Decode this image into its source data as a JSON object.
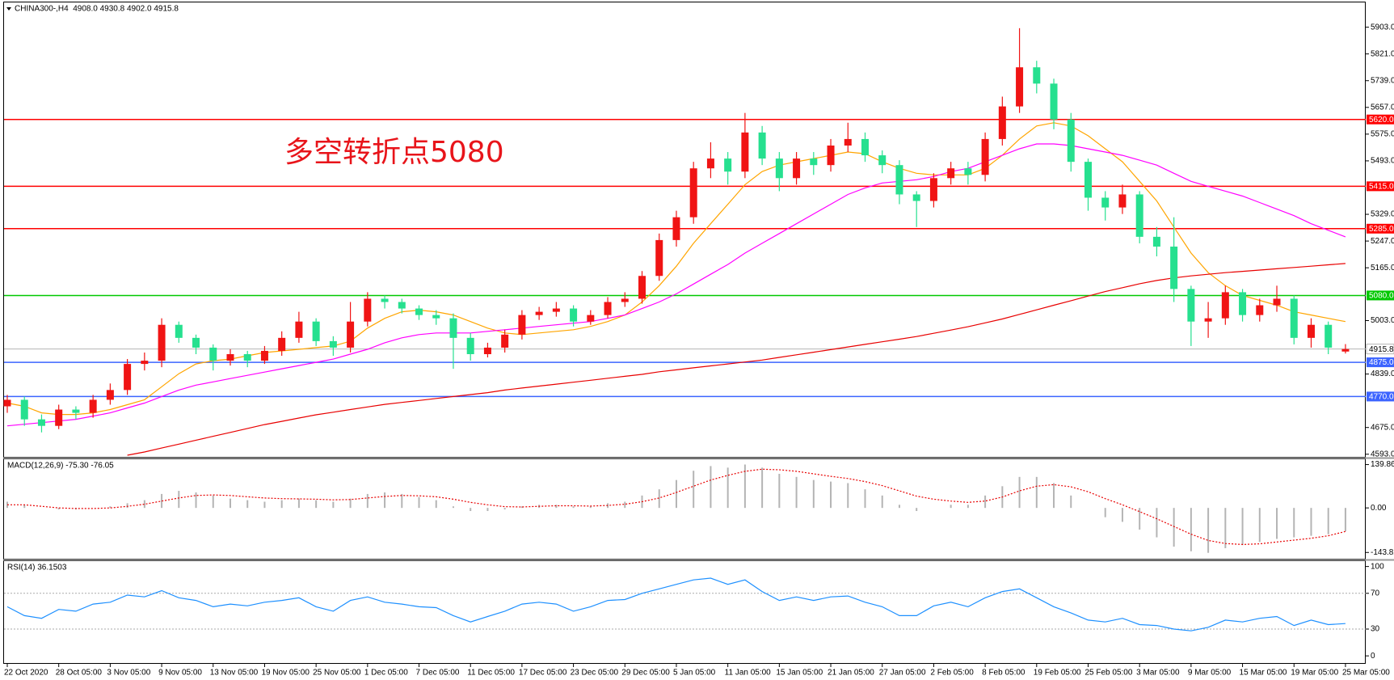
{
  "chart_data": [
    {
      "type": "candlestick",
      "title": "CHINA300-,H4  4908.0 4930.8 4902.0 4915.8",
      "annotation": "多空转折点5080",
      "categories": [
        "22 Oct 2020",
        null,
        null,
        "28 Oct 05:00",
        null,
        null,
        "3 Nov 05:00",
        null,
        null,
        "9 Nov 05:00",
        null,
        null,
        "13 Nov 05:00",
        null,
        null,
        "19 Nov 05:00",
        null,
        null,
        "25 Nov 05:00",
        null,
        null,
        "1 Dec 05:00",
        null,
        null,
        "7 Dec 05:00",
        null,
        null,
        "11 Dec 05:00",
        null,
        null,
        "17 Dec 05:00",
        null,
        null,
        "23 Dec 05:00",
        null,
        null,
        "29 Dec 05:00",
        null,
        null,
        "5 Jan 05:00",
        null,
        null,
        "11 Jan 05:00",
        null,
        null,
        "15 Jan 05:00",
        null,
        null,
        "21 Jan 05:00",
        null,
        null,
        "27 Jan 05:00",
        null,
        null,
        "2 Feb 05:00",
        null,
        null,
        "8 Feb 05:00",
        null,
        null,
        "19 Feb 05:00",
        null,
        null,
        "25 Feb 05:00",
        null,
        null,
        "3 Mar 05:00",
        null,
        null,
        "9 Mar 05:00",
        null,
        null,
        "15 Mar 05:00",
        null,
        null,
        "19 Mar 05:00",
        null,
        null,
        "25 Mar 05:00"
      ],
      "open": [
        4740,
        4760,
        4700,
        4680,
        4730,
        4720,
        4760,
        4790,
        4870,
        4880,
        4990,
        4950,
        4920,
        4880,
        4900,
        4880,
        4910,
        4950,
        5000,
        4940,
        4920,
        5000,
        5070,
        5060,
        5040,
        5020,
        5010,
        4950,
        4900,
        4920,
        4960,
        5020,
        5030,
        5040,
        5000,
        5020,
        5060,
        5070,
        5140,
        5250,
        5320,
        5470,
        5500,
        5460,
        5580,
        5500,
        5440,
        5500,
        5480,
        5540,
        5560,
        5510,
        5480,
        5390,
        5370,
        5440,
        5470,
        5450,
        5560,
        5660,
        5780,
        5730,
        5620,
        5490,
        5380,
        5350,
        5390,
        5260,
        5230,
        5100,
        5000,
        5010,
        5090,
        5020,
        5050,
        5070,
        4950,
        4990,
        4908
      ],
      "high": [
        4775,
        4770,
        4715,
        4745,
        4740,
        4775,
        4810,
        4885,
        4905,
        5010,
        5000,
        4960,
        4930,
        4915,
        4910,
        4925,
        4970,
        5030,
        5010,
        4955,
        5060,
        5090,
        5080,
        5070,
        5050,
        5035,
        5025,
        4965,
        4935,
        4975,
        5035,
        5045,
        5060,
        5050,
        5035,
        5075,
        5090,
        5155,
        5270,
        5340,
        5490,
        5550,
        5520,
        5640,
        5600,
        5520,
        5520,
        5520,
        5560,
        5610,
        5580,
        5525,
        5495,
        5400,
        5455,
        5490,
        5490,
        5580,
        5690,
        5900,
        5800,
        5745,
        5640,
        5500,
        5400,
        5420,
        5400,
        5290,
        5320,
        5110,
        5060,
        5110,
        5100,
        5070,
        5110,
        5080,
        5010,
        5000,
        4930.8
      ],
      "low": [
        4720,
        4680,
        4660,
        4670,
        4700,
        4705,
        4745,
        4775,
        4850,
        4860,
        4935,
        4900,
        4850,
        4865,
        4860,
        4870,
        4895,
        4935,
        4925,
        4895,
        4905,
        4985,
        5040,
        5025,
        5005,
        4990,
        4855,
        4880,
        4890,
        4905,
        4945,
        5005,
        5015,
        4985,
        4990,
        5010,
        5045,
        5055,
        5125,
        5230,
        5300,
        5440,
        5420,
        5440,
        5480,
        5400,
        5420,
        5450,
        5460,
        5520,
        5490,
        5455,
        5360,
        5290,
        5350,
        5420,
        5420,
        5430,
        5540,
        5640,
        5700,
        5590,
        5460,
        5340,
        5310,
        5330,
        5240,
        5200,
        5060,
        4925,
        4950,
        4990,
        5000,
        5000,
        5030,
        4930,
        4920,
        4900,
        4902
      ],
      "close": [
        4760,
        4700,
        4680,
        4730,
        4720,
        4760,
        4790,
        4870,
        4880,
        4990,
        4950,
        4920,
        4880,
        4900,
        4880,
        4910,
        4950,
        5000,
        4940,
        4920,
        5000,
        5070,
        5060,
        5040,
        5020,
        5010,
        4950,
        4900,
        4920,
        4960,
        5020,
        5030,
        5040,
        5000,
        5020,
        5060,
        5070,
        5140,
        5250,
        5320,
        5470,
        5500,
        5460,
        5580,
        5500,
        5440,
        5500,
        5480,
        5540,
        5560,
        5510,
        5480,
        5390,
        5370,
        5440,
        5470,
        5450,
        5560,
        5660,
        5780,
        5730,
        5620,
        5490,
        5380,
        5350,
        5390,
        5260,
        5230,
        5100,
        5000,
        5010,
        5090,
        5020,
        5050,
        5070,
        4950,
        4990,
        4920,
        4915.8
      ],
      "up_color": "#f01414",
      "down_color": "#26e08f",
      "lines": [
        {
          "color": "#ffa500",
          "values": [
            4750,
            4740,
            4720,
            4715,
            4715,
            4720,
            4730,
            4745,
            4760,
            4800,
            4840,
            4870,
            4880,
            4885,
            4895,
            4905,
            4910,
            4915,
            4920,
            4925,
            4940,
            4980,
            5010,
            5030,
            5035,
            5030,
            5020,
            5000,
            4980,
            4965,
            4960,
            4965,
            4970,
            4975,
            4985,
            5000,
            5020,
            5060,
            5110,
            5170,
            5240,
            5300,
            5360,
            5420,
            5460,
            5480,
            5490,
            5500,
            5510,
            5520,
            5515,
            5490,
            5470,
            5455,
            5450,
            5450,
            5450,
            5470,
            5510,
            5560,
            5600,
            5610,
            5600,
            5570,
            5530,
            5490,
            5430,
            5370,
            5290,
            5210,
            5150,
            5110,
            5080,
            5065,
            5050,
            5030,
            5020,
            5010,
            5000
          ]
        },
        {
          "color": "#ff00ff",
          "values": [
            4680,
            4685,
            4690,
            4695,
            4700,
            4710,
            4720,
            4735,
            4750,
            4770,
            4790,
            4805,
            4815,
            4825,
            4835,
            4845,
            4855,
            4865,
            4875,
            4885,
            4900,
            4915,
            4935,
            4950,
            4960,
            4965,
            4965,
            4965,
            4970,
            4975,
            4980,
            4985,
            4990,
            4995,
            5000,
            5010,
            5020,
            5040,
            5060,
            5085,
            5115,
            5145,
            5175,
            5210,
            5240,
            5270,
            5300,
            5330,
            5360,
            5390,
            5410,
            5425,
            5430,
            5435,
            5445,
            5460,
            5470,
            5490,
            5510,
            5530,
            5545,
            5545,
            5540,
            5530,
            5520,
            5510,
            5495,
            5480,
            5455,
            5430,
            5415,
            5400,
            5385,
            5365,
            5345,
            5325,
            5300,
            5280,
            5260
          ]
        },
        {
          "color": "#e80000",
          "values": [
            null,
            null,
            null,
            null,
            null,
            null,
            null,
            4590,
            4600,
            4612,
            4624,
            4636,
            4648,
            4660,
            4672,
            4684,
            4694,
            4704,
            4714,
            4722,
            4730,
            4738,
            4746,
            4752,
            4758,
            4764,
            4770,
            4776,
            4782,
            4790,
            4796,
            4802,
            4808,
            4814,
            4820,
            4826,
            4832,
            4838,
            4846,
            4852,
            4858,
            4864,
            4870,
            4876,
            4882,
            4890,
            4898,
            4906,
            4914,
            4922,
            4930,
            4938,
            4946,
            4954,
            4964,
            4974,
            4984,
            4996,
            5008,
            5022,
            5036,
            5050,
            5064,
            5078,
            5092,
            5104,
            5116,
            5126,
            5134,
            5140,
            5145,
            5150,
            5154,
            5158,
            5162,
            5166,
            5170,
            5174,
            5178
          ]
        }
      ],
      "levels": [
        {
          "value": 5620,
          "label": "5620.0",
          "color": "#ff0000"
        },
        {
          "value": 5415,
          "label": "5415.0",
          "color": "#ff0000"
        },
        {
          "value": 5285,
          "label": "5285.0",
          "color": "#ff0000"
        },
        {
          "value": 5080,
          "label": "5080.0",
          "color": "#00c800"
        },
        {
          "value": 4875,
          "label": "4875.0",
          "color": "#3c64ff"
        },
        {
          "value": 4770,
          "label": "4770.0",
          "color": "#3c64ff"
        }
      ],
      "current_price": {
        "value": 4915.8,
        "label": "4915.8",
        "color": "#b4b4b4"
      },
      "ylim": [
        4585,
        5979
      ],
      "yticks": [
        {
          "value": 5903,
          "label": "5903.0"
        },
        {
          "value": 5821,
          "label": "5821.0"
        },
        {
          "value": 5739,
          "label": "5739.0"
        },
        {
          "value": 5657,
          "label": "5657.0"
        },
        {
          "value": 5575,
          "label": "5575.0"
        },
        {
          "value": 5493,
          "label": "5493.0"
        },
        {
          "value": 5329,
          "label": "5329.0"
        },
        {
          "value": 5247,
          "label": "5247.0"
        },
        {
          "value": 5165,
          "label": "5165.0"
        },
        {
          "value": 5003,
          "label": "5003.0"
        },
        {
          "value": 4839,
          "label": "4839.0"
        },
        {
          "value": 4675,
          "label": "4675.0"
        },
        {
          "value": 4593,
          "label": "4593.0"
        }
      ]
    },
    {
      "type": "macd",
      "title": "MACD(12,26,9) -75.30 -76.05",
      "histogram": {
        "color": "#b4b4b4",
        "values": [
          20,
          10,
          0,
          -5,
          -5,
          0,
          5,
          15,
          25,
          45,
          55,
          50,
          40,
          30,
          25,
          20,
          25,
          30,
          25,
          20,
          30,
          45,
          50,
          45,
          35,
          25,
          5,
          -10,
          -10,
          -5,
          5,
          10,
          10,
          5,
          5,
          15,
          20,
          40,
          60,
          90,
          120,
          135,
          130,
          140,
          130,
          110,
          100,
          90,
          85,
          80,
          60,
          40,
          10,
          -10,
          0,
          10,
          10,
          40,
          70,
          100,
          100,
          80,
          40,
          0,
          -30,
          -45,
          -70,
          -95,
          -125,
          -140,
          -145,
          -130,
          -120,
          -110,
          -100,
          -95,
          -90,
          -85,
          -75.3
        ]
      },
      "signal": {
        "color": "#e80000",
        "values": [
          10,
          10,
          5,
          0,
          -2,
          -2,
          0,
          5,
          12,
          22,
          32,
          40,
          42,
          40,
          36,
          32,
          30,
          29,
          28,
          26,
          27,
          32,
          37,
          40,
          39,
          36,
          28,
          18,
          10,
          4,
          3,
          5,
          7,
          7,
          6,
          8,
          12,
          20,
          32,
          50,
          70,
          90,
          105,
          118,
          125,
          123,
          118,
          110,
          102,
          95,
          85,
          72,
          55,
          38,
          28,
          22,
          18,
          22,
          35,
          55,
          70,
          75,
          68,
          52,
          30,
          10,
          -12,
          -35,
          -60,
          -85,
          -105,
          -115,
          -118,
          -116,
          -110,
          -104,
          -98,
          -90,
          -76.05
        ]
      },
      "ylim": [
        -164,
        157
      ],
      "yticks": [
        {
          "value": 139.86,
          "label": "139.86"
        },
        {
          "value": 0,
          "label": "0.00"
        },
        {
          "value": -143.82,
          "label": "-143.82"
        }
      ]
    },
    {
      "type": "line",
      "title": "RSI(14) 36.1503",
      "color": "#1e90ff",
      "values": [
        55,
        45,
        42,
        52,
        50,
        58,
        60,
        68,
        66,
        73,
        65,
        62,
        55,
        58,
        56,
        60,
        62,
        65,
        55,
        50,
        62,
        66,
        60,
        58,
        55,
        54,
        45,
        38,
        44,
        50,
        58,
        60,
        58,
        50,
        55,
        62,
        63,
        70,
        75,
        80,
        85,
        87,
        80,
        85,
        72,
        62,
        66,
        62,
        66,
        67,
        60,
        55,
        45,
        45,
        56,
        60,
        55,
        65,
        72,
        75,
        65,
        55,
        48,
        40,
        38,
        42,
        35,
        34,
        30,
        28,
        32,
        40,
        38,
        42,
        44,
        34,
        40,
        35,
        36.1503
      ],
      "levels": [
        70,
        30
      ],
      "ylim": [
        -8,
        106
      ],
      "yticks": [
        100,
        70,
        30,
        0
      ]
    }
  ]
}
